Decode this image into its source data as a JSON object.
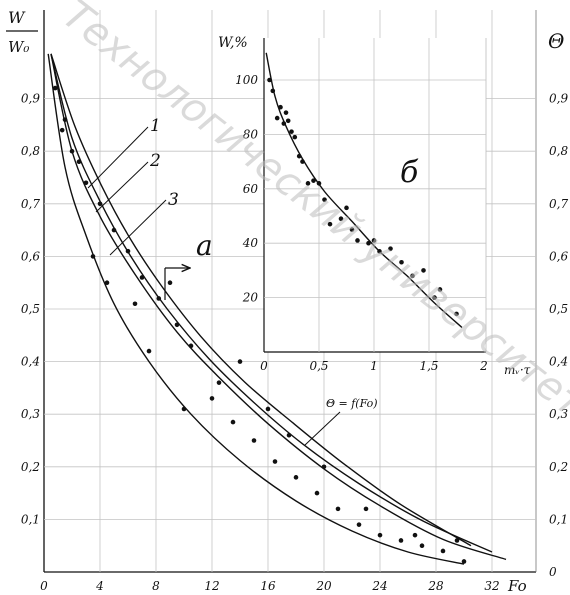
{
  "chart_data": [
    {
      "type": "scatter",
      "title": "",
      "xlabel": "Fo",
      "ylabel_left_num": "W",
      "ylabel_left_den": "W₀",
      "ylabel_right": "Θ",
      "xlim": [
        0,
        34
      ],
      "ylim": [
        0,
        1.0
      ],
      "x_ticks": [
        "0",
        "4",
        "8",
        "12",
        "16",
        "20",
        "24",
        "28",
        "32"
      ],
      "x_tick_values": [
        0,
        4,
        8,
        12,
        16,
        20,
        24,
        28,
        32
      ],
      "y_ticks_left": [
        "0,1",
        "0,2",
        "0,3",
        "0,4",
        "0,5",
        "0,6",
        "0,7",
        "0,8",
        "0,9"
      ],
      "y_ticks_right": [
        "0",
        "0,1",
        "0,2",
        "0,3",
        "0,4",
        "0,5",
        "0,6",
        "0,7",
        "0,8",
        "0,9"
      ],
      "y_tick_values": [
        0.1,
        0.2,
        0.3,
        0.4,
        0.5,
        0.6,
        0.7,
        0.8,
        0.9
      ],
      "grid": true,
      "labels": {
        "c1": "1",
        "c2": "2",
        "c3": "3",
        "a": "а",
        "theta": "Θ = f(Fo)"
      },
      "series": [
        {
          "name": "1",
          "x": [
            0.5,
            2.2,
            4.1,
            6.2,
            8.5,
            11.2,
            14.3,
            17.8,
            21.5,
            25.5,
            30.5
          ],
          "y": [
            0.985,
            0.848,
            0.735,
            0.632,
            0.54,
            0.448,
            0.362,
            0.283,
            0.204,
            0.128,
            0.05
          ]
        },
        {
          "name": "2",
          "x": [
            0.5,
            2.0,
            4.0,
            6.2,
            8.8,
            11.8,
            15.0,
            18.5,
            22.5,
            27.0,
            32.0
          ],
          "y": [
            0.985,
            0.825,
            0.705,
            0.6,
            0.5,
            0.405,
            0.322,
            0.243,
            0.168,
            0.098,
            0.038
          ]
        },
        {
          "name": "3",
          "x": [
            0.5,
            2.0,
            4.0,
            6.5,
            9.5,
            12.5,
            16.0,
            20.0,
            24.0,
            28.5,
            33.0
          ],
          "y": [
            0.985,
            0.8,
            0.676,
            0.566,
            0.456,
            0.37,
            0.282,
            0.196,
            0.126,
            0.062,
            0.024
          ]
        },
        {
          "name": "",
          "x": [
            0.3,
            1.5,
            3.0,
            5.0,
            7.5,
            10.5,
            14.0,
            18.0,
            22.0,
            26.0,
            30.0
          ],
          "y": [
            0.985,
            0.77,
            0.64,
            0.51,
            0.4,
            0.3,
            0.212,
            0.135,
            0.078,
            0.038,
            0.015
          ]
        },
        {
          "name": "points",
          "x": [
            0.8,
            1.3,
            2.0,
            3.0,
            4.0,
            5.0,
            6.0,
            7.0,
            8.2,
            9.5,
            10.5,
            12.0,
            13.5,
            15.0,
            16.5,
            18.0,
            19.5,
            21.0,
            22.5,
            24.0,
            25.5,
            27.0,
            28.5,
            30.0,
            1.5,
            2.5,
            3.5,
            4.5,
            6.5,
            7.5,
            9.0,
            10.0,
            12.5,
            14.0,
            16.0,
            17.5,
            20.0,
            23.0,
            26.5,
            29.5
          ],
          "y": [
            0.92,
            0.84,
            0.8,
            0.74,
            0.7,
            0.65,
            0.61,
            0.56,
            0.52,
            0.47,
            0.43,
            0.33,
            0.285,
            0.25,
            0.21,
            0.18,
            0.15,
            0.12,
            0.09,
            0.07,
            0.06,
            0.05,
            0.04,
            0.02,
            0.86,
            0.78,
            0.6,
            0.55,
            0.51,
            0.42,
            0.55,
            0.31,
            0.36,
            0.4,
            0.31,
            0.26,
            0.2,
            0.12,
            0.07,
            0.06
          ]
        }
      ]
    },
    {
      "type": "scatter",
      "title": "б",
      "xlabel": "mᵥ·τ",
      "ylabel": "W,%",
      "xlim": [
        0,
        2
      ],
      "ylim": [
        0,
        110
      ],
      "x_ticks": [
        "0",
        "0,5",
        "1",
        "1,5",
        "2"
      ],
      "x_tick_values": [
        0,
        0.5,
        1,
        1.5,
        2
      ],
      "y_ticks": [
        "20",
        "40",
        "60",
        "80",
        "100"
      ],
      "y_tick_values": [
        20,
        40,
        60,
        80,
        100
      ],
      "grid": true,
      "series": [
        {
          "name": "",
          "x": [
            0.02,
            0.1,
            0.2,
            0.35,
            0.55,
            0.8,
            1.05,
            1.3,
            1.55,
            1.8
          ],
          "y": [
            110,
            94,
            83,
            71,
            59,
            48,
            37,
            28,
            18,
            9
          ]
        },
        {
          "name": "points",
          "x": [
            0.05,
            0.08,
            0.12,
            0.15,
            0.18,
            0.2,
            0.22,
            0.25,
            0.28,
            0.32,
            0.35,
            0.4,
            0.45,
            0.5,
            0.55,
            0.6,
            0.7,
            0.75,
            0.8,
            0.85,
            0.95,
            1.0,
            1.05,
            1.15,
            1.25,
            1.35,
            1.45,
            1.55,
            1.6,
            1.75
          ],
          "y": [
            100,
            96,
            86,
            90,
            84,
            88,
            85,
            81,
            79,
            72,
            70,
            62,
            63,
            62,
            56,
            47,
            49,
            53,
            45,
            41,
            40,
            41,
            37,
            38,
            33,
            28,
            30,
            20,
            23,
            14
          ]
        }
      ]
    }
  ],
  "watermark": "Технологический университет"
}
